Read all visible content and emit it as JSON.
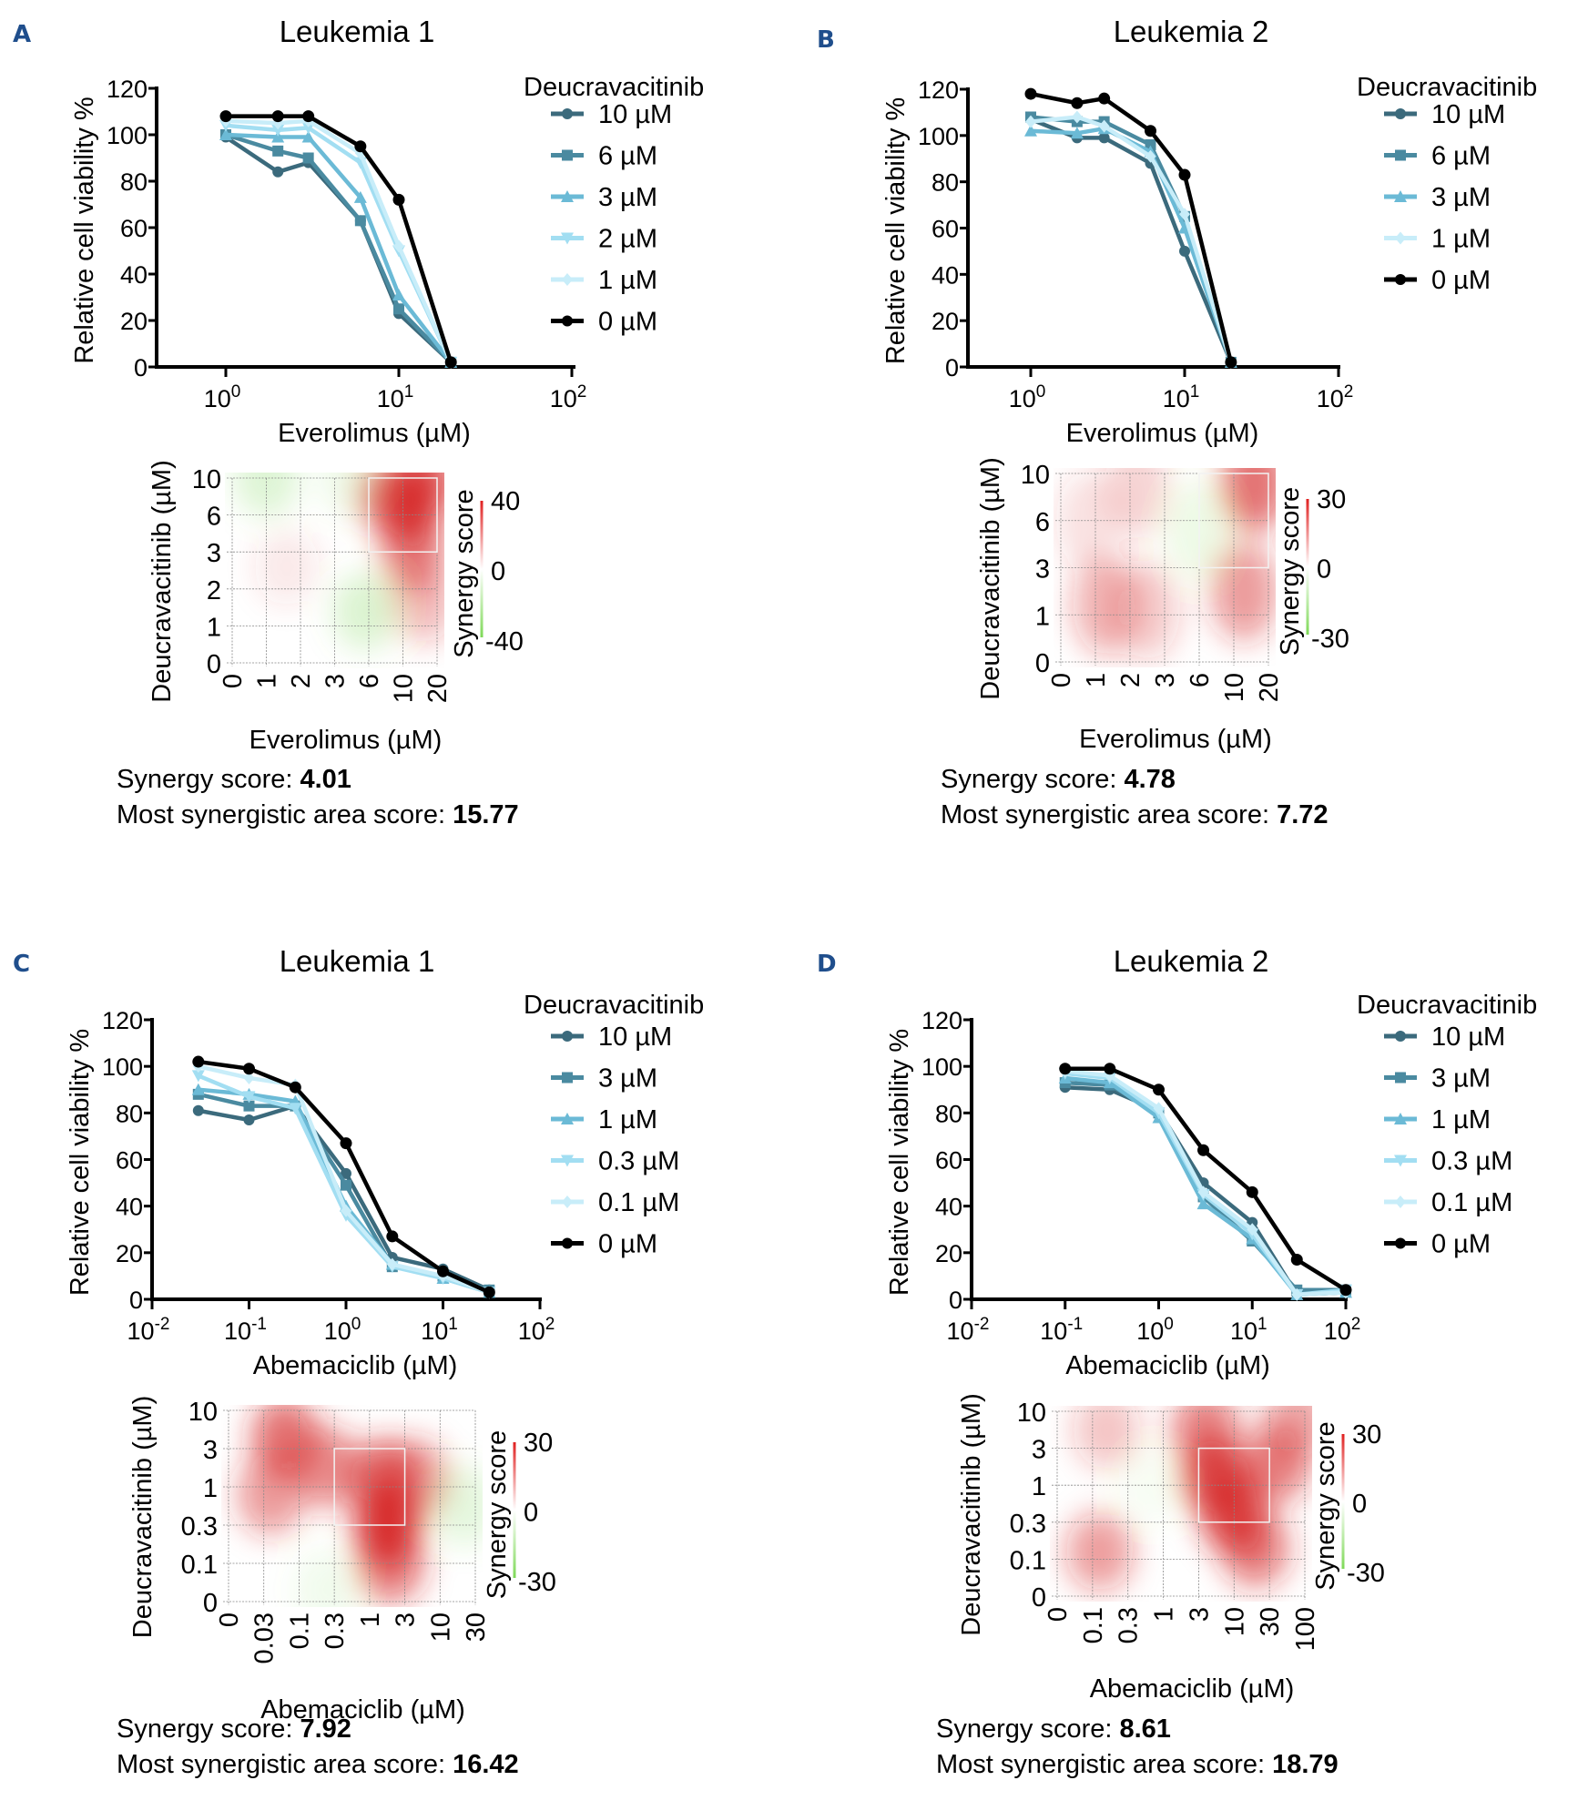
{
  "chart_data": [
    {
      "id": "A",
      "type": "line",
      "panel_label": "A",
      "title": "Leukemia 1",
      "xlabel": "Everolimus (µM)",
      "ylabel": "Relative cell viability %",
      "xscale": "log",
      "xlim_log10": [
        -0.4,
        2
      ],
      "xticks": [
        {
          "exp": 0,
          "label": "10",
          "sup": "0"
        },
        {
          "exp": 1,
          "label": "10",
          "sup": "1"
        },
        {
          "exp": 2,
          "label": "10",
          "sup": "2"
        }
      ],
      "ylim": [
        0,
        120
      ],
      "yticks": [
        0,
        20,
        40,
        60,
        80,
        100,
        120
      ],
      "legend_title": "Deucravacitinib",
      "legend_position": "right",
      "x": [
        1,
        2,
        3,
        6,
        10,
        20
      ],
      "series": [
        {
          "name": "10 µM",
          "color": "#3b6a7c",
          "marker": "circle",
          "values": [
            99,
            84,
            88,
            63,
            23,
            2
          ]
        },
        {
          "name": "6 µM",
          "color": "#4a8aa0",
          "marker": "square",
          "values": [
            100,
            93,
            90,
            63,
            25,
            2
          ]
        },
        {
          "name": "3 µM",
          "color": "#6bbad6",
          "marker": "triangle-up",
          "values": [
            100,
            99,
            99,
            73,
            31,
            2
          ]
        },
        {
          "name": "2 µM",
          "color": "#a2def2",
          "marker": "triangle-down",
          "values": [
            104,
            102,
            103,
            88,
            50,
            2
          ]
        },
        {
          "name": "1 µM",
          "color": "#c8edf9",
          "marker": "diamond",
          "values": [
            106,
            105,
            106,
            92,
            52,
            2
          ]
        },
        {
          "name": "0 µM",
          "color": "#000000",
          "marker": "circle",
          "values": [
            108,
            108,
            108,
            95,
            72,
            2
          ]
        }
      ]
    },
    {
      "id": "B",
      "type": "line",
      "panel_label": "B",
      "title": "Leukemia 2",
      "xlabel": "Everolimus (µM)",
      "ylabel": "Relative cell viability %",
      "xscale": "log",
      "xlim_log10": [
        -0.4,
        2
      ],
      "xticks": [
        {
          "exp": 0,
          "label": "10",
          "sup": "0"
        },
        {
          "exp": 1,
          "label": "10",
          "sup": "1"
        },
        {
          "exp": 2,
          "label": "10",
          "sup": "2"
        }
      ],
      "ylim": [
        0,
        120
      ],
      "yticks": [
        0,
        20,
        40,
        60,
        80,
        100,
        120
      ],
      "legend_title": "Deucravacitinib",
      "legend_position": "right",
      "x": [
        1,
        2,
        3,
        6,
        10,
        20
      ],
      "series": [
        {
          "name": "10 µM",
          "color": "#3b6a7c",
          "marker": "circle",
          "values": [
            107,
            99,
            99,
            88,
            50,
            2
          ]
        },
        {
          "name": "6 µM",
          "color": "#4a8aa0",
          "marker": "square",
          "values": [
            108,
            106,
            106,
            96,
            65,
            2
          ]
        },
        {
          "name": "3 µM",
          "color": "#6bbad6",
          "marker": "triangle-up",
          "values": [
            102,
            101,
            103,
            93,
            60,
            2
          ]
        },
        {
          "name": "1 µM",
          "color": "#c8edf9",
          "marker": "diamond",
          "values": [
            106,
            108,
            104,
            91,
            66,
            2
          ]
        },
        {
          "name": "0 µM",
          "color": "#000000",
          "marker": "circle",
          "values": [
            118,
            114,
            116,
            102,
            83,
            2
          ]
        }
      ]
    },
    {
      "id": "C",
      "type": "line",
      "panel_label": "C",
      "title": "Leukemia 1",
      "xlabel": "Abemaciclib (µM)",
      "ylabel": "Relative cell viability %",
      "xscale": "log",
      "xlim_log10": [
        -2,
        2
      ],
      "xticks": [
        {
          "exp": -2,
          "label": "10",
          "sup": "-2"
        },
        {
          "exp": -1,
          "label": "10",
          "sup": "-1"
        },
        {
          "exp": 0,
          "label": "10",
          "sup": "0"
        },
        {
          "exp": 1,
          "label": "10",
          "sup": "1"
        },
        {
          "exp": 2,
          "label": "10",
          "sup": "2"
        }
      ],
      "ylim": [
        0,
        120
      ],
      "yticks": [
        0,
        20,
        40,
        60,
        80,
        100,
        120
      ],
      "legend_title": "Deucravacitinib",
      "legend_position": "right",
      "x": [
        0.03,
        0.1,
        0.3,
        1,
        3,
        10,
        30
      ],
      "series": [
        {
          "name": "10 µM",
          "color": "#3b6a7c",
          "marker": "circle",
          "values": [
            81,
            77,
            83,
            54,
            18,
            13,
            4
          ]
        },
        {
          "name": "3 µM",
          "color": "#4a8aa0",
          "marker": "square",
          "values": [
            88,
            83,
            83,
            49,
            14,
            10,
            4
          ]
        },
        {
          "name": "1 µM",
          "color": "#6bbad6",
          "marker": "triangle-up",
          "values": [
            90,
            88,
            85,
            40,
            15,
            9,
            3
          ]
        },
        {
          "name": "0.3 µM",
          "color": "#a2def2",
          "marker": "triangle-down",
          "values": [
            96,
            87,
            82,
            36,
            14,
            9,
            3
          ]
        },
        {
          "name": "0.1 µM",
          "color": "#c8edf9",
          "marker": "diamond",
          "values": [
            100,
            95,
            92,
            38,
            15,
            10,
            3
          ]
        },
        {
          "name": "0 µM",
          "color": "#000000",
          "marker": "circle",
          "values": [
            102,
            99,
            91,
            67,
            27,
            12,
            3
          ]
        }
      ]
    },
    {
      "id": "D",
      "type": "line",
      "panel_label": "D",
      "title": "Leukemia 2",
      "xlabel": "Abemaciclib (µM)",
      "ylabel": "Relative cell viability %",
      "xscale": "log",
      "xlim_log10": [
        -2,
        2
      ],
      "xticks": [
        {
          "exp": -2,
          "label": "10",
          "sup": "-2"
        },
        {
          "exp": -1,
          "label": "10",
          "sup": "-1"
        },
        {
          "exp": 0,
          "label": "10",
          "sup": "0"
        },
        {
          "exp": 1,
          "label": "10",
          "sup": "1"
        },
        {
          "exp": 2,
          "label": "10",
          "sup": "2"
        }
      ],
      "ylim": [
        0,
        120
      ],
      "yticks": [
        0,
        20,
        40,
        60,
        80,
        100,
        120
      ],
      "legend_title": "Deucravacitinib",
      "legend_position": "right",
      "x": [
        0.1,
        0.3,
        1,
        3,
        10,
        30,
        100
      ],
      "series": [
        {
          "name": "10 µM",
          "color": "#3b6a7c",
          "marker": "circle",
          "values": [
            91,
            90,
            81,
            50,
            33,
            2,
            3
          ]
        },
        {
          "name": "3 µM",
          "color": "#4a8aa0",
          "marker": "square",
          "values": [
            93,
            92,
            80,
            44,
            25,
            4,
            4
          ]
        },
        {
          "name": "1 µM",
          "color": "#6bbad6",
          "marker": "triangle-up",
          "values": [
            95,
            93,
            78,
            41,
            26,
            2,
            3
          ]
        },
        {
          "name": "0.3 µM",
          "color": "#a2def2",
          "marker": "triangle-down",
          "values": [
            97,
            95,
            80,
            45,
            28,
            2,
            4
          ]
        },
        {
          "name": "0.1 µM",
          "color": "#c8edf9",
          "marker": "diamond",
          "values": [
            98,
            96,
            82,
            46,
            30,
            2,
            3
          ]
        },
        {
          "name": "0 µM",
          "color": "#000000",
          "marker": "circle",
          "values": [
            99,
            99,
            90,
            64,
            46,
            17,
            4
          ]
        }
      ]
    },
    {
      "id": "A-heatmap",
      "type": "heatmap",
      "xlabel": "Everolimus (µM)",
      "ylabel": "Deucravacitinib (µM)",
      "x_categories": [
        "0",
        "1",
        "2",
        "3",
        "6",
        "10",
        "20"
      ],
      "y_categories": [
        "0",
        "1",
        "2",
        "3",
        "6",
        "10"
      ],
      "colorbar_label": "Synergy score",
      "colorbar_ticks": [
        "40",
        "0",
        "-40"
      ],
      "color_range": [
        -40,
        40
      ],
      "most_synergistic_area": {
        "x_from": "6",
        "x_to": "20",
        "y_from": "3",
        "y_to": "10"
      },
      "regions": [
        {
          "x": 5.2,
          "y": 4.2,
          "score": 34
        },
        {
          "x": 5.6,
          "y": 5.0,
          "score": 32
        },
        {
          "x": 5.3,
          "y": 3.0,
          "score": 26
        },
        {
          "x": 5.6,
          "y": 1.6,
          "score": 14
        },
        {
          "x": 4.6,
          "y": 4.5,
          "score": 22
        },
        {
          "x": 1.6,
          "y": 2.6,
          "score": 5
        },
        {
          "x": 1.0,
          "y": 5.0,
          "score": -12
        },
        {
          "x": 3.9,
          "y": 1.4,
          "score": -13
        },
        {
          "x": 3.5,
          "y": 5.0,
          "score": -6
        }
      ],
      "synergy_score_label": "Synergy score: ",
      "synergy_score": "4.01",
      "area_score_label": "Most synergistic area score: ",
      "area_score": "15.77"
    },
    {
      "id": "B-heatmap",
      "type": "heatmap",
      "xlabel": "Everolimus (µM)",
      "ylabel": "Deucravacitinib (µM)",
      "x_categories": [
        "0",
        "1",
        "2",
        "3",
        "6",
        "10",
        "20"
      ],
      "y_categories": [
        "0",
        "1",
        "3",
        "6",
        "10"
      ],
      "colorbar_label": "Synergy score",
      "colorbar_ticks": [
        "30",
        "0",
        "-30"
      ],
      "color_range": [
        -30,
        30
      ],
      "most_synergistic_area": {
        "x_from": "6",
        "x_to": "20",
        "y_from": "3",
        "y_to": "10"
      },
      "regions": [
        {
          "x": 5.6,
          "y": 3.8,
          "score": 22
        },
        {
          "x": 5.3,
          "y": 1.5,
          "score": 16
        },
        {
          "x": 1.3,
          "y": 1.2,
          "score": 12
        },
        {
          "x": 2.5,
          "y": 1.1,
          "score": 8
        },
        {
          "x": 2.2,
          "y": 3.7,
          "score": 7
        },
        {
          "x": 4.0,
          "y": 2.8,
          "score": -5
        },
        {
          "x": 0.8,
          "y": 3.0,
          "score": 5
        }
      ],
      "synergy_score_label": "Synergy score: ",
      "synergy_score": "4.78",
      "area_score_label": "Most synergistic area score: ",
      "area_score": "7.72"
    },
    {
      "id": "C-heatmap",
      "type": "heatmap",
      "xlabel": "Abemaciclib (µM)",
      "ylabel": "Deucravacitinib (µM)",
      "x_categories": [
        "0",
        "0.03",
        "0.1",
        "0.3",
        "1",
        "3",
        "10",
        "30"
      ],
      "y_categories": [
        "0",
        "0.1",
        "0.3",
        "1",
        "3",
        "10"
      ],
      "colorbar_label": "Synergy score",
      "colorbar_ticks": [
        "30",
        "0",
        "-30"
      ],
      "color_range": [
        -30,
        30
      ],
      "most_synergistic_area": {
        "x_from": "0.3",
        "x_to": "3",
        "y_from": "0.3",
        "y_to": "3"
      },
      "regions": [
        {
          "x": 4.5,
          "y": 2.0,
          "score": 30
        },
        {
          "x": 4.4,
          "y": 3.2,
          "score": 24
        },
        {
          "x": 4.6,
          "y": 1.0,
          "score": 20
        },
        {
          "x": 1.6,
          "y": 4.3,
          "score": 22
        },
        {
          "x": 1.2,
          "y": 2.8,
          "score": 16
        },
        {
          "x": 2.8,
          "y": 3.5,
          "score": 18
        },
        {
          "x": 5.3,
          "y": 3.2,
          "score": 16
        },
        {
          "x": 6.7,
          "y": 2.5,
          "score": -7
        },
        {
          "x": 2.8,
          "y": 0.3,
          "score": -4
        }
      ],
      "synergy_score_label": "Synergy score: ",
      "synergy_score": "7.92",
      "area_score_label": "Most synergistic area score: ",
      "area_score": "16.42"
    },
    {
      "id": "D-heatmap",
      "type": "heatmap",
      "xlabel": "Abemaciclib (µM)",
      "ylabel": "Deucravacitinib (µM)",
      "x_categories": [
        "0",
        "0.1",
        "0.3",
        "1",
        "3",
        "10",
        "30",
        "100"
      ],
      "y_categories": [
        "0",
        "0.1",
        "0.3",
        "1",
        "3",
        "10"
      ],
      "colorbar_label": "Synergy score",
      "colorbar_ticks": [
        "30",
        "0",
        "-30"
      ],
      "color_range": [
        -30,
        30
      ],
      "most_synergistic_area": {
        "x_from": "3",
        "x_to": "30",
        "y_from": "0.3",
        "y_to": "3"
      },
      "regions": [
        {
          "x": 4.5,
          "y": 3.2,
          "score": 28
        },
        {
          "x": 5.0,
          "y": 2.2,
          "score": 27
        },
        {
          "x": 4.2,
          "y": 4.5,
          "score": 20
        },
        {
          "x": 5.6,
          "y": 1.3,
          "score": 20
        },
        {
          "x": 6.2,
          "y": 3.6,
          "score": 20
        },
        {
          "x": 1.2,
          "y": 1.2,
          "score": 15
        },
        {
          "x": 1.4,
          "y": 4.5,
          "score": 9
        },
        {
          "x": 6.8,
          "y": 4.8,
          "score": 14
        },
        {
          "x": 2.7,
          "y": 3.0,
          "score": -2
        }
      ],
      "synergy_score_label": "Synergy score: ",
      "synergy_score": "8.61",
      "area_score_label": "Most synergistic area score: ",
      "area_score": "18.79"
    }
  ]
}
